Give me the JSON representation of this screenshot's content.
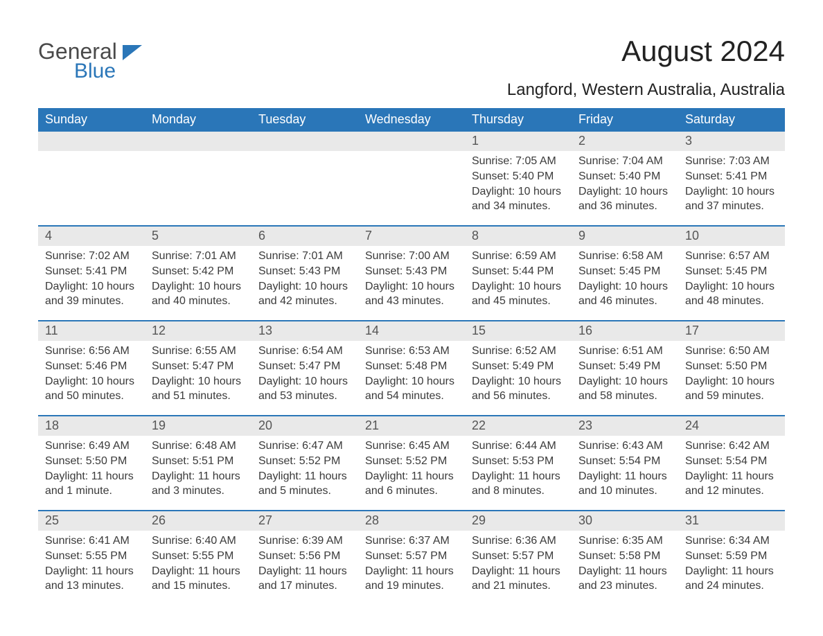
{
  "brand": {
    "part1": "General",
    "part2": "Blue"
  },
  "title": "August 2024",
  "location": "Langford, Western Australia, Australia",
  "colors": {
    "header_bg": "#2a76b8",
    "header_text": "#ffffff",
    "daynum_bg": "#e9e9e9",
    "daynum_text": "#555555",
    "body_text": "#3a3a3a",
    "page_bg": "#ffffff",
    "week_border": "#2a76b8"
  },
  "typography": {
    "title_fontsize": 42,
    "location_fontsize": 24,
    "weekday_fontsize": 18,
    "daynum_fontsize": 18,
    "info_fontsize": 16
  },
  "layout": {
    "columns": 7,
    "rows": 5,
    "first_weekday": "Sunday"
  },
  "weekdays": [
    "Sunday",
    "Monday",
    "Tuesday",
    "Wednesday",
    "Thursday",
    "Friday",
    "Saturday"
  ],
  "weeks": [
    [
      {
        "blank": true
      },
      {
        "blank": true
      },
      {
        "blank": true
      },
      {
        "blank": true
      },
      {
        "day": "1",
        "sunrise": "Sunrise: 7:05 AM",
        "sunset": "Sunset: 5:40 PM",
        "daylight1": "Daylight: 10 hours",
        "daylight2": "and 34 minutes."
      },
      {
        "day": "2",
        "sunrise": "Sunrise: 7:04 AM",
        "sunset": "Sunset: 5:40 PM",
        "daylight1": "Daylight: 10 hours",
        "daylight2": "and 36 minutes."
      },
      {
        "day": "3",
        "sunrise": "Sunrise: 7:03 AM",
        "sunset": "Sunset: 5:41 PM",
        "daylight1": "Daylight: 10 hours",
        "daylight2": "and 37 minutes."
      }
    ],
    [
      {
        "day": "4",
        "sunrise": "Sunrise: 7:02 AM",
        "sunset": "Sunset: 5:41 PM",
        "daylight1": "Daylight: 10 hours",
        "daylight2": "and 39 minutes."
      },
      {
        "day": "5",
        "sunrise": "Sunrise: 7:01 AM",
        "sunset": "Sunset: 5:42 PM",
        "daylight1": "Daylight: 10 hours",
        "daylight2": "and 40 minutes."
      },
      {
        "day": "6",
        "sunrise": "Sunrise: 7:01 AM",
        "sunset": "Sunset: 5:43 PM",
        "daylight1": "Daylight: 10 hours",
        "daylight2": "and 42 minutes."
      },
      {
        "day": "7",
        "sunrise": "Sunrise: 7:00 AM",
        "sunset": "Sunset: 5:43 PM",
        "daylight1": "Daylight: 10 hours",
        "daylight2": "and 43 minutes."
      },
      {
        "day": "8",
        "sunrise": "Sunrise: 6:59 AM",
        "sunset": "Sunset: 5:44 PM",
        "daylight1": "Daylight: 10 hours",
        "daylight2": "and 45 minutes."
      },
      {
        "day": "9",
        "sunrise": "Sunrise: 6:58 AM",
        "sunset": "Sunset: 5:45 PM",
        "daylight1": "Daylight: 10 hours",
        "daylight2": "and 46 minutes."
      },
      {
        "day": "10",
        "sunrise": "Sunrise: 6:57 AM",
        "sunset": "Sunset: 5:45 PM",
        "daylight1": "Daylight: 10 hours",
        "daylight2": "and 48 minutes."
      }
    ],
    [
      {
        "day": "11",
        "sunrise": "Sunrise: 6:56 AM",
        "sunset": "Sunset: 5:46 PM",
        "daylight1": "Daylight: 10 hours",
        "daylight2": "and 50 minutes."
      },
      {
        "day": "12",
        "sunrise": "Sunrise: 6:55 AM",
        "sunset": "Sunset: 5:47 PM",
        "daylight1": "Daylight: 10 hours",
        "daylight2": "and 51 minutes."
      },
      {
        "day": "13",
        "sunrise": "Sunrise: 6:54 AM",
        "sunset": "Sunset: 5:47 PM",
        "daylight1": "Daylight: 10 hours",
        "daylight2": "and 53 minutes."
      },
      {
        "day": "14",
        "sunrise": "Sunrise: 6:53 AM",
        "sunset": "Sunset: 5:48 PM",
        "daylight1": "Daylight: 10 hours",
        "daylight2": "and 54 minutes."
      },
      {
        "day": "15",
        "sunrise": "Sunrise: 6:52 AM",
        "sunset": "Sunset: 5:49 PM",
        "daylight1": "Daylight: 10 hours",
        "daylight2": "and 56 minutes."
      },
      {
        "day": "16",
        "sunrise": "Sunrise: 6:51 AM",
        "sunset": "Sunset: 5:49 PM",
        "daylight1": "Daylight: 10 hours",
        "daylight2": "and 58 minutes."
      },
      {
        "day": "17",
        "sunrise": "Sunrise: 6:50 AM",
        "sunset": "Sunset: 5:50 PM",
        "daylight1": "Daylight: 10 hours",
        "daylight2": "and 59 minutes."
      }
    ],
    [
      {
        "day": "18",
        "sunrise": "Sunrise: 6:49 AM",
        "sunset": "Sunset: 5:50 PM",
        "daylight1": "Daylight: 11 hours",
        "daylight2": "and 1 minute."
      },
      {
        "day": "19",
        "sunrise": "Sunrise: 6:48 AM",
        "sunset": "Sunset: 5:51 PM",
        "daylight1": "Daylight: 11 hours",
        "daylight2": "and 3 minutes."
      },
      {
        "day": "20",
        "sunrise": "Sunrise: 6:47 AM",
        "sunset": "Sunset: 5:52 PM",
        "daylight1": "Daylight: 11 hours",
        "daylight2": "and 5 minutes."
      },
      {
        "day": "21",
        "sunrise": "Sunrise: 6:45 AM",
        "sunset": "Sunset: 5:52 PM",
        "daylight1": "Daylight: 11 hours",
        "daylight2": "and 6 minutes."
      },
      {
        "day": "22",
        "sunrise": "Sunrise: 6:44 AM",
        "sunset": "Sunset: 5:53 PM",
        "daylight1": "Daylight: 11 hours",
        "daylight2": "and 8 minutes."
      },
      {
        "day": "23",
        "sunrise": "Sunrise: 6:43 AM",
        "sunset": "Sunset: 5:54 PM",
        "daylight1": "Daylight: 11 hours",
        "daylight2": "and 10 minutes."
      },
      {
        "day": "24",
        "sunrise": "Sunrise: 6:42 AM",
        "sunset": "Sunset: 5:54 PM",
        "daylight1": "Daylight: 11 hours",
        "daylight2": "and 12 minutes."
      }
    ],
    [
      {
        "day": "25",
        "sunrise": "Sunrise: 6:41 AM",
        "sunset": "Sunset: 5:55 PM",
        "daylight1": "Daylight: 11 hours",
        "daylight2": "and 13 minutes."
      },
      {
        "day": "26",
        "sunrise": "Sunrise: 6:40 AM",
        "sunset": "Sunset: 5:55 PM",
        "daylight1": "Daylight: 11 hours",
        "daylight2": "and 15 minutes."
      },
      {
        "day": "27",
        "sunrise": "Sunrise: 6:39 AM",
        "sunset": "Sunset: 5:56 PM",
        "daylight1": "Daylight: 11 hours",
        "daylight2": "and 17 minutes."
      },
      {
        "day": "28",
        "sunrise": "Sunrise: 6:37 AM",
        "sunset": "Sunset: 5:57 PM",
        "daylight1": "Daylight: 11 hours",
        "daylight2": "and 19 minutes."
      },
      {
        "day": "29",
        "sunrise": "Sunrise: 6:36 AM",
        "sunset": "Sunset: 5:57 PM",
        "daylight1": "Daylight: 11 hours",
        "daylight2": "and 21 minutes."
      },
      {
        "day": "30",
        "sunrise": "Sunrise: 6:35 AM",
        "sunset": "Sunset: 5:58 PM",
        "daylight1": "Daylight: 11 hours",
        "daylight2": "and 23 minutes."
      },
      {
        "day": "31",
        "sunrise": "Sunrise: 6:34 AM",
        "sunset": "Sunset: 5:59 PM",
        "daylight1": "Daylight: 11 hours",
        "daylight2": "and 24 minutes."
      }
    ]
  ]
}
